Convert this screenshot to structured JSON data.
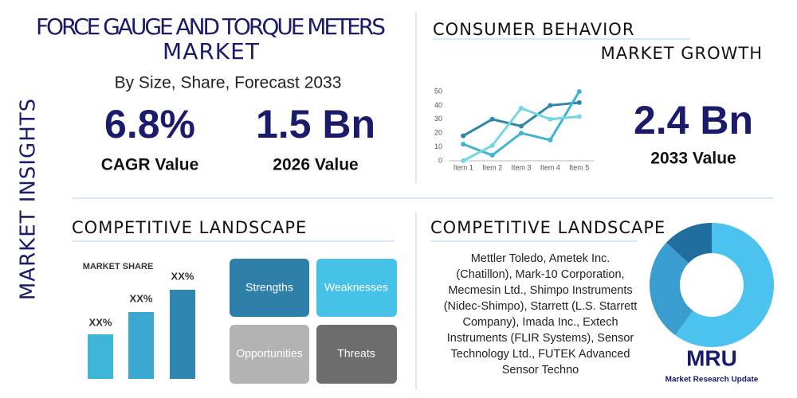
{
  "sidebar": "MARKET INSIGHTS",
  "title": [
    "FORCE GAUGE AND TORQUE METERS",
    "MARKET"
  ],
  "subtitle": "By Size, Share, Forecast 2033",
  "stats": [
    {
      "value": "6.8%",
      "label": "CAGR Value"
    },
    {
      "value": "1.5 Bn",
      "label": "2026 Value"
    }
  ],
  "growth": {
    "header": "CONSUMER BEHAVIOR",
    "subheader": "MARKET GROWTH",
    "value": "2.4 Bn",
    "label": "2033 Value"
  },
  "chart_data": [
    {
      "type": "line",
      "categories": [
        "Item 1",
        "Item 2",
        "Item 3",
        "Item 4",
        "Item 5"
      ],
      "ylim": [
        0,
        50
      ],
      "yticks": [
        0,
        10,
        20,
        30,
        40,
        50
      ],
      "series": [
        {
          "color": "#2f86a8",
          "values": [
            18,
            30,
            25,
            40,
            42
          ]
        },
        {
          "color": "#3fb3d3",
          "values": [
            12,
            4,
            20,
            15,
            50
          ]
        },
        {
          "color": "#74d6e2",
          "values": [
            0,
            11,
            38,
            30,
            32
          ]
        }
      ]
    },
    {
      "type": "pie",
      "values": [
        60,
        27,
        13
      ],
      "colors": [
        "#4cc2ef",
        "#3a9dcf",
        "#1f6e9e"
      ]
    }
  ],
  "competitive": {
    "title": "COMPETITIVE LANDSCAPE",
    "market_share": {
      "title": "MARKET SHARE",
      "labels": [
        "XX%",
        "XX%",
        "XX%"
      ]
    },
    "swot": [
      "Strengths",
      "Weaknesses",
      "Opportunities",
      "Threats"
    ]
  },
  "companies": {
    "title": "COMPETITIVE LANDSCAPE",
    "lines": [
      "Mettler Toledo, Ametek Inc.",
      "(Chatillon), Mark-10 Corporation,",
      "Mecmesin Ltd., Shimpo Instruments",
      "(Nidec-Shimpo), Starrett (L.S. Starrett",
      "Company), Imada Inc., Extech",
      "Instruments (FLIR Systems), Sensor",
      "Technology Ltd., FUTEK Advanced",
      "Sensor Techno"
    ]
  },
  "logo": {
    "mark": "MRU",
    "text": "Market Research Update"
  }
}
